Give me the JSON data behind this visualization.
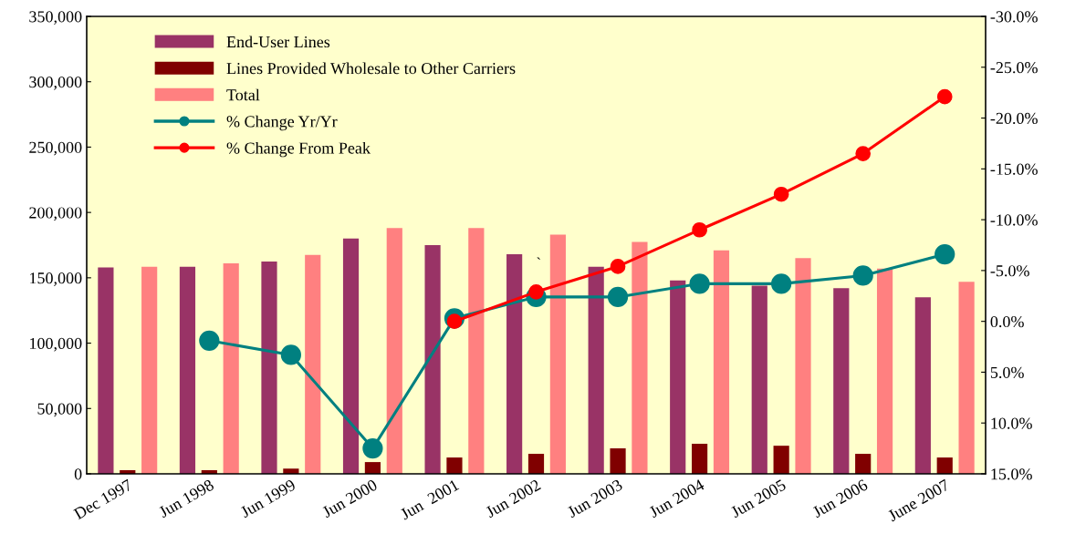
{
  "chart_data": {
    "type": "bar",
    "categories": [
      "Dec 1997",
      "Jun 1998",
      "Jun 1999",
      "Jun 2000",
      "Jun  2001",
      "Jun 2002",
      "Jun 2003",
      "Jun 2004",
      "Jun 2005",
      "Jun 2006",
      "June 2007"
    ],
    "series": [
      {
        "name": "End-User Lines",
        "color": "#993366",
        "values": [
          158000,
          158500,
          162500,
          180000,
          175000,
          168000,
          158500,
          148000,
          144000,
          142000,
          135000
        ]
      },
      {
        "name": "Lines Provided Wholesale to Other Carriers",
        "color": "#800000",
        "values": [
          2800,
          2800,
          4000,
          9000,
          12500,
          15300,
          19500,
          23000,
          21500,
          15300,
          12500
        ]
      },
      {
        "name": "Total",
        "color": "#ff8080",
        "values": [
          158500,
          161000,
          167500,
          188000,
          188000,
          183000,
          177500,
          171000,
          165000,
          157000,
          147000
        ]
      },
      {
        "name": "% Change Yr/Yr",
        "type": "line",
        "axis": "y2",
        "color": "#008080",
        "values": [
          null,
          1.9,
          3.3,
          12.5,
          -0.3,
          -2.4,
          -2.4,
          -3.7,
          -3.7,
          -4.5,
          -6.6
        ]
      },
      {
        "name": "% Change From Peak",
        "type": "line",
        "axis": "y2",
        "color": "#ff0000",
        "values": [
          null,
          null,
          null,
          null,
          0,
          -2.9,
          -5.4,
          -9.0,
          -12.5,
          -16.5,
          -22.1
        ]
      }
    ],
    "ylim": [
      0,
      350000
    ],
    "yticks": [
      {
        "value": 0,
        "label": "0"
      },
      {
        "value": 50000,
        "label": "50,000"
      },
      {
        "value": 100000,
        "label": "100,000"
      },
      {
        "value": 150000,
        "label": "150,000"
      },
      {
        "value": 200000,
        "label": "200,000"
      },
      {
        "value": 250000,
        "label": "250,000"
      },
      {
        "value": 300000,
        "label": "300,000"
      },
      {
        "value": 350000,
        "label": "350,000"
      }
    ],
    "y2lim": [
      15,
      -30
    ],
    "y2ticks": [
      {
        "value": -30,
        "label": "-30.0%"
      },
      {
        "value": -25,
        "label": "-25.0%"
      },
      {
        "value": -20,
        "label": "-20.0%"
      },
      {
        "value": -15,
        "label": "-15.0%"
      },
      {
        "value": -10,
        "label": "-10.0%"
      },
      {
        "value": -5,
        "label": "-5.0%"
      },
      {
        "value": 0,
        "label": "0.0%"
      },
      {
        "value": 5,
        "label": "5.0%"
      },
      {
        "value": 10,
        "label": "10.0%"
      },
      {
        "value": 15,
        "label": "15.0%"
      }
    ],
    "annotations": [
      "`"
    ],
    "marker": "circle",
    "legend": "top left",
    "grid": false
  }
}
